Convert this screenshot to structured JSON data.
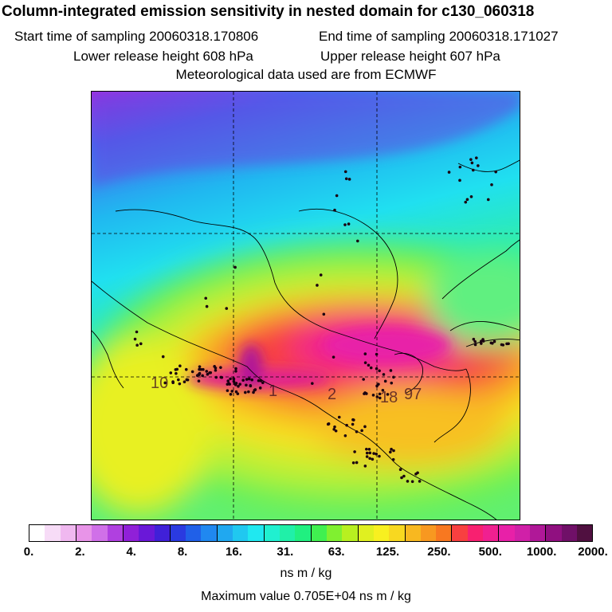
{
  "title": "Column-integrated emission sensitivity in nested domain for c130_060318",
  "start_time": "Start time of sampling 20060318.170806",
  "end_time": "End time of sampling 20060318.171027",
  "lower_release": "Lower release height  608 hPa",
  "upper_release": "Upper release height  607 hPa",
  "met_data": "Meteorological data used are from ECMWF",
  "map_labels": [
    "10",
    "1",
    "2",
    "18",
    "97"
  ],
  "colorbar": {
    "tick_labels": [
      "0.",
      "2.",
      "4.",
      "8.",
      "16.",
      "31.",
      "63.",
      "125.",
      "250.",
      "500.",
      "1000.",
      "2000."
    ],
    "colors": [
      "#ffffff",
      "#f7dcf7",
      "#f0b8f0",
      "#e894e8",
      "#d070e8",
      "#b040e0",
      "#9020d8",
      "#6a18d8",
      "#4020d8",
      "#2a3ae0",
      "#2060e8",
      "#2088f0",
      "#20a8f0",
      "#20c8f0",
      "#20e8f0",
      "#20f0d0",
      "#20f0a8",
      "#20f080",
      "#40f050",
      "#80f030",
      "#b8f020",
      "#e0f020",
      "#f8f020",
      "#f8d820",
      "#f8b820",
      "#f89820",
      "#f87820",
      "#f84040",
      "#f82070",
      "#f02090",
      "#e820a8",
      "#d020a8",
      "#b01898",
      "#901080",
      "#701068",
      "#501040"
    ],
    "units": "ns m / kg"
  },
  "max_value": "Maximum value  0.705E+04 ns m / kg"
}
